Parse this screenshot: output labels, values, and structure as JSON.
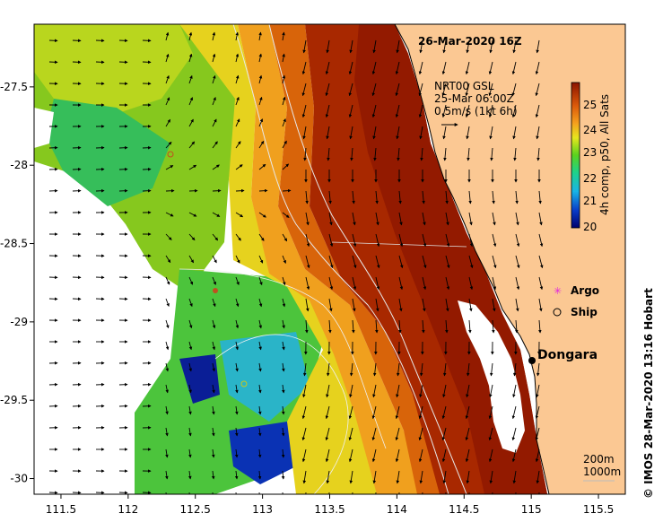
{
  "map": {
    "title": "26-Mar-2020 16Z",
    "credit": "© IMOS 28-Mar-2020 13:16 Hobart",
    "current_info": {
      "line1": "NRT00 GSL",
      "line2": "25-Mar 06:00Z",
      "line3": "0.5m/s (1kt 6h)"
    },
    "colorbar": {
      "label": "4h comp, p50, All Sats",
      "min": 20,
      "max": 25.5,
      "ticks": [
        "25",
        "24",
        "23",
        "22",
        "21",
        "20"
      ]
    },
    "legend": [
      {
        "label": "Argo",
        "symbol": "magenta-star"
      },
      {
        "label": "Ship",
        "symbol": "open-circle"
      }
    ],
    "place": {
      "name": "Dongara",
      "lon": 114.93,
      "lat": -29.25
    },
    "contours": {
      "line1": "200m",
      "line2": "1000m"
    },
    "x_axis": {
      "ticks": [
        "111.5",
        "112",
        "112.5",
        "113",
        "113.5",
        "114",
        "114.5",
        "115",
        "115.5"
      ]
    },
    "y_axis": {
      "ticks": [
        "-27.5",
        "-28",
        "-28.5",
        "-29",
        "-29.5",
        "-30"
      ]
    },
    "lon_range": [
      111.3,
      115.7
    ],
    "lat_range": [
      -30.1,
      -27.1
    ],
    "colors": {
      "land": "#fbc893",
      "warm": "#9e1a00",
      "cool": "#00106e",
      "argo": "#e020e0"
    }
  }
}
